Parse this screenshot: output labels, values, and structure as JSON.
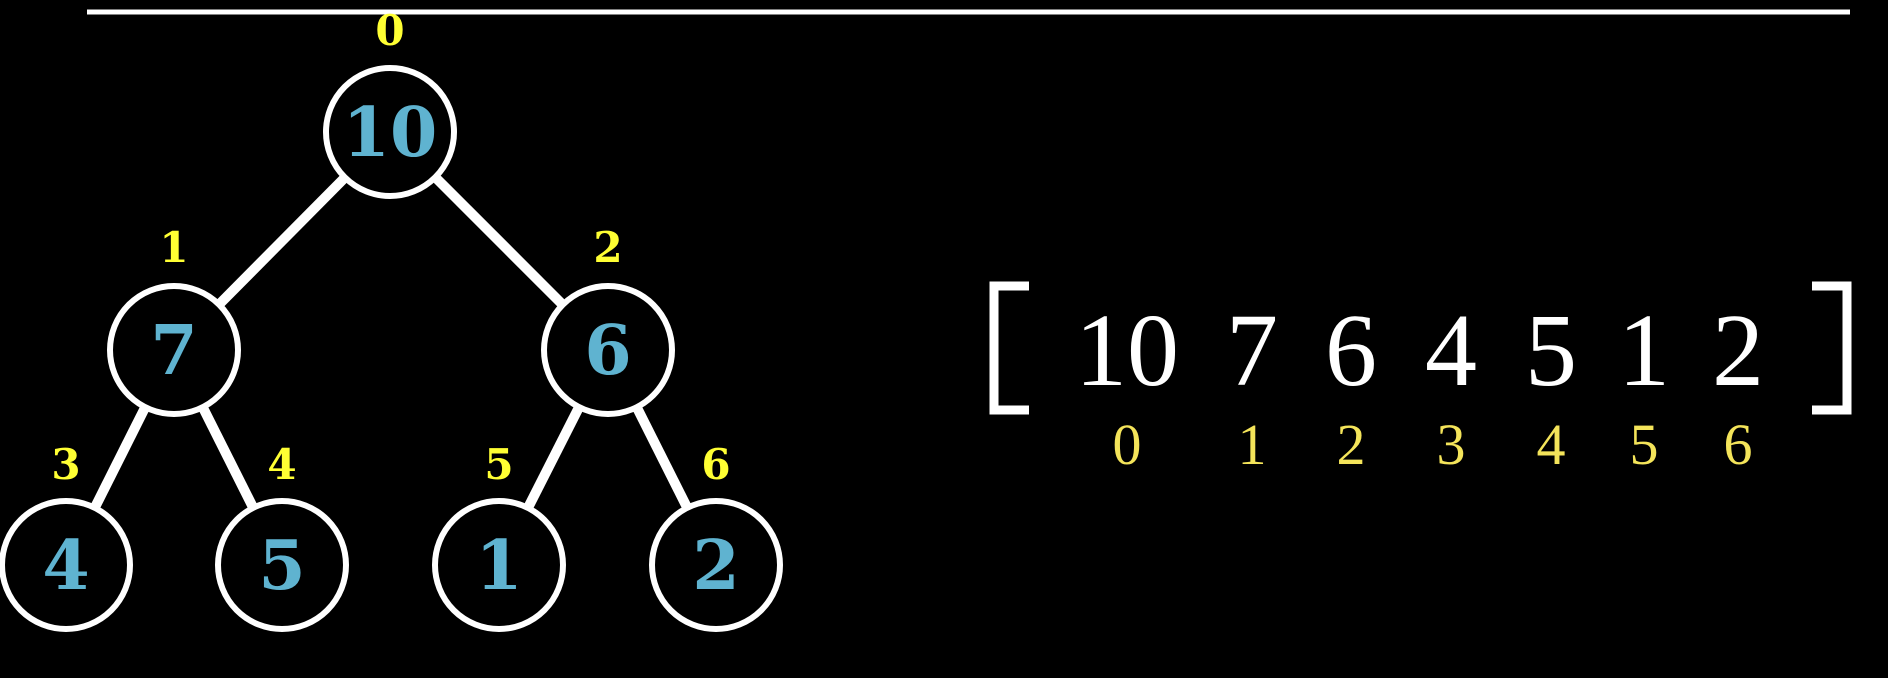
{
  "colors": {
    "background": "#000000",
    "line": "#ffffff",
    "node_value": "#5fb3d0",
    "tree_index": "#ffff33",
    "array_value": "#ffffff",
    "array_index": "#f4e45a"
  },
  "tree": {
    "nodes": [
      {
        "index": "0",
        "value": "10"
      },
      {
        "index": "1",
        "value": "7"
      },
      {
        "index": "2",
        "value": "6"
      },
      {
        "index": "3",
        "value": "4"
      },
      {
        "index": "4",
        "value": "5"
      },
      {
        "index": "5",
        "value": "1"
      },
      {
        "index": "6",
        "value": "2"
      }
    ],
    "edges": [
      [
        0,
        1
      ],
      [
        0,
        2
      ],
      [
        1,
        3
      ],
      [
        1,
        4
      ],
      [
        2,
        5
      ],
      [
        2,
        6
      ]
    ]
  },
  "array": {
    "values": [
      "10",
      "7",
      "6",
      "4",
      "5",
      "1",
      "2"
    ],
    "indices": [
      "0",
      "1",
      "2",
      "3",
      "4",
      "5",
      "6"
    ]
  }
}
